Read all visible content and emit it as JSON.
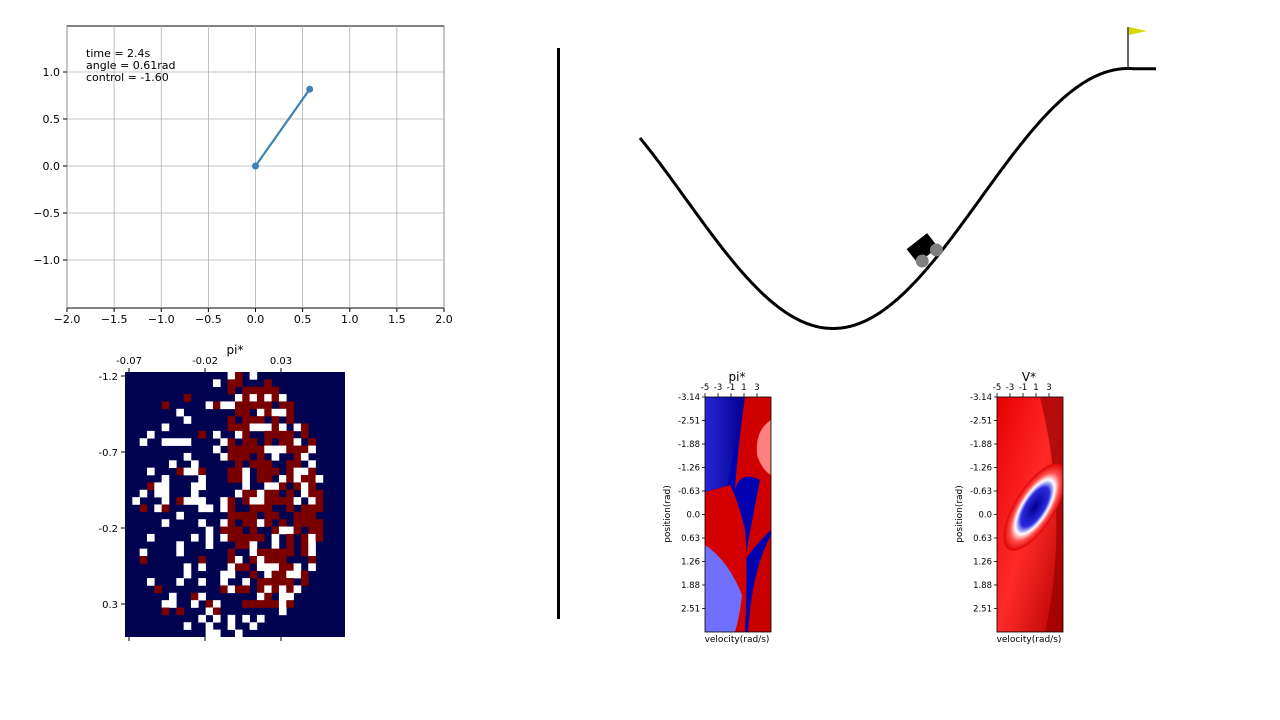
{
  "pendulum_plot": {
    "info": {
      "time": "time = 2.4s",
      "angle": "angle = 0.61rad",
      "control": "control = -1.60"
    },
    "x_ticks": [
      "−2.0",
      "−1.5",
      "−1.0",
      "−0.5",
      "0.0",
      "0.5",
      "1.0",
      "1.5",
      "2.0"
    ],
    "y_ticks": [
      "1.0",
      "0.5",
      "0.0",
      "−0.5",
      "−1.0"
    ],
    "line_color": "#3f83b5",
    "grid": true
  },
  "pi_left": {
    "title": "pi*",
    "x_ticks": [
      "-0.07",
      "-0.02",
      "0.03"
    ],
    "y_ticks": [
      "-1.2",
      "-0.7",
      "-0.2",
      "0.3"
    ],
    "colors": {
      "navy": "#020350",
      "red": "#7a0000",
      "white": "#ffffff"
    }
  },
  "mountain_car": {
    "flag_color": "#d7d700"
  },
  "pi_right": {
    "title": "pi*",
    "xlabel": "velocity(rad/s)",
    "ylabel": "position(rad)",
    "x_ticks": [
      "-5",
      "-3",
      "-1",
      "1",
      "3"
    ],
    "y_ticks": [
      "-3.14",
      "-2.51",
      "-1.88",
      "-1.26",
      "-0.63",
      "0.0",
      "0.63",
      "1.26",
      "1.88",
      "2.51"
    ]
  },
  "v_right": {
    "title": "V*",
    "xlabel": "velocity(rad/s)",
    "ylabel": "position(rad)",
    "x_ticks": [
      "-5",
      "-3",
      "-1",
      "1",
      "3"
    ],
    "y_ticks": [
      "-3.14",
      "-2.51",
      "-1.88",
      "-1.26",
      "-0.63",
      "0.0",
      "0.63",
      "1.26",
      "1.88",
      "2.51"
    ]
  }
}
